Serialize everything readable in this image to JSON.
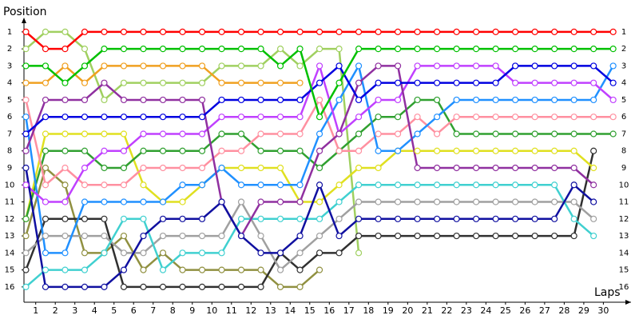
{
  "chart_data": {
    "type": "line",
    "x_label": "Laps",
    "y_label": "Position",
    "x": [
      0,
      1,
      2,
      3,
      4,
      5,
      6,
      7,
      8,
      9,
      10,
      11,
      12,
      13,
      14,
      15,
      16,
      17,
      18,
      19,
      20,
      21,
      22,
      23,
      24,
      25,
      26,
      27,
      28,
      29,
      30
    ],
    "xlim": [
      -0.1,
      30.3
    ],
    "xticks": [
      {
        "value": 0.5,
        "label": "1"
      },
      {
        "value": 1.5,
        "label": "2"
      },
      {
        "value": 2.5,
        "label": "3"
      },
      {
        "value": 3.5,
        "label": "4"
      },
      {
        "value": 4.5,
        "label": "5"
      },
      {
        "value": 5.5,
        "label": "6"
      },
      {
        "value": 6.5,
        "label": "7"
      },
      {
        "value": 7.5,
        "label": "8"
      },
      {
        "value": 8.5,
        "label": "9"
      },
      {
        "value": 9.5,
        "label": "10"
      },
      {
        "value": 10.5,
        "label": "11"
      },
      {
        "value": 11.5,
        "label": "12"
      },
      {
        "value": 12.5,
        "label": "13"
      },
      {
        "value": 13.5,
        "label": "14"
      },
      {
        "value": 14.5,
        "label": "15"
      },
      {
        "value": 15.5,
        "label": "16"
      },
      {
        "value": 16.5,
        "label": "17"
      },
      {
        "value": 17.5,
        "label": "18"
      },
      {
        "value": 18.5,
        "label": "19"
      },
      {
        "value": 19.5,
        "label": "20"
      },
      {
        "value": 20.5,
        "label": "21"
      },
      {
        "value": 21.5,
        "label": "22"
      },
      {
        "value": 22.5,
        "label": "23"
      },
      {
        "value": 23.5,
        "label": "24"
      },
      {
        "value": 24.5,
        "label": "25"
      },
      {
        "value": 25.5,
        "label": "26"
      },
      {
        "value": 26.5,
        "label": "27"
      },
      {
        "value": 27.5,
        "label": "28"
      },
      {
        "value": 28.5,
        "label": "29"
      },
      {
        "value": 29.5,
        "label": "30"
      }
    ],
    "ylim": [
      16.9,
      0.3
    ],
    "yticks": [
      1,
      2,
      3,
      4,
      5,
      6,
      7,
      8,
      9,
      10,
      11,
      12,
      13,
      14,
      15,
      16
    ],
    "series": [
      {
        "color": "#a0d060",
        "values": [
          2,
          1,
          1,
          2,
          5,
          4,
          4,
          4,
          4,
          4,
          3,
          3,
          3,
          2,
          3,
          2,
          2,
          14,
          null,
          null,
          null,
          null,
          null,
          null,
          null,
          null,
          null,
          null,
          null,
          null,
          null
        ]
      },
      {
        "color": "#909040",
        "values": [
          13,
          9,
          10,
          14,
          14,
          13,
          15,
          14,
          15,
          15,
          15,
          15,
          15,
          16,
          16,
          15,
          null,
          null,
          null,
          null,
          null,
          null,
          null,
          null,
          null,
          null,
          null,
          null,
          null,
          null,
          null
        ]
      },
      {
        "color": "#303030",
        "values": [
          15,
          12,
          12,
          12,
          12,
          16,
          16,
          16,
          16,
          16,
          16,
          16,
          16,
          14,
          15,
          14,
          14,
          13,
          13,
          13,
          13,
          13,
          13,
          13,
          13,
          13,
          13,
          13,
          13,
          8,
          null
        ]
      },
      {
        "color": "#a0a0a0",
        "values": [
          14,
          13,
          13,
          13,
          13,
          14,
          14,
          13,
          13,
          13,
          13,
          11,
          13,
          15,
          14,
          13,
          12,
          11,
          11,
          11,
          11,
          11,
          11,
          11,
          11,
          11,
          11,
          11,
          11,
          12,
          null
        ]
      },
      {
        "color": "#40d0d0",
        "values": [
          16,
          15,
          15,
          15,
          14,
          12,
          12,
          15,
          14,
          14,
          14,
          12,
          12,
          12,
          12,
          12,
          11,
          10,
          10,
          10,
          10,
          10,
          10,
          10,
          10,
          10,
          10,
          10,
          12,
          13,
          null
        ]
      },
      {
        "color": "#e0e020",
        "values": [
          12,
          7,
          7,
          7,
          7,
          7,
          10,
          11,
          11,
          10,
          9,
          9,
          9,
          9,
          11,
          11,
          10,
          9,
          9,
          8,
          8,
          8,
          8,
          8,
          8,
          8,
          8,
          8,
          8,
          9,
          null
        ]
      },
      {
        "color": "#30a030",
        "values": [
          12,
          8,
          8,
          8,
          9,
          9,
          8,
          8,
          8,
          8,
          7,
          7,
          8,
          8,
          8,
          9,
          8,
          7,
          6,
          6,
          5,
          5,
          7,
          7,
          7,
          7,
          7,
          7,
          7,
          7,
          7
        ]
      },
      {
        "color": "#ff90a0",
        "values": [
          5,
          10,
          9,
          10,
          10,
          10,
          9,
          9,
          9,
          9,
          8,
          8,
          7,
          7,
          7,
          5,
          8,
          8,
          7,
          7,
          6,
          7,
          6,
          6,
          6,
          6,
          6,
          6,
          6,
          6,
          6
        ]
      },
      {
        "color": "#2090ff",
        "values": [
          6,
          14,
          14,
          11,
          11,
          11,
          11,
          11,
          10,
          10,
          9,
          10,
          10,
          10,
          10,
          7,
          5,
          3,
          8,
          8,
          7,
          6,
          5,
          5,
          5,
          5,
          5,
          5,
          5,
          5,
          3
        ]
      },
      {
        "color": "#c040ff",
        "values": [
          10,
          11,
          11,
          9,
          8,
          8,
          7,
          7,
          7,
          7,
          6,
          6,
          6,
          6,
          6,
          3,
          7,
          6,
          5,
          5,
          3,
          3,
          3,
          3,
          3,
          4,
          4,
          4,
          4,
          4,
          5
        ]
      },
      {
        "color": "#9030a0",
        "values": [
          8,
          5,
          5,
          5,
          4,
          5,
          5,
          5,
          5,
          5,
          11,
          13,
          11,
          11,
          11,
          8,
          7,
          4,
          3,
          3,
          9,
          9,
          9,
          9,
          9,
          9,
          9,
          9,
          9,
          10,
          null
        ]
      },
      {
        "color": "#1010a0",
        "values": [
          9,
          16,
          16,
          16,
          16,
          15,
          13,
          12,
          12,
          12,
          11,
          13,
          14,
          14,
          13,
          10,
          13,
          12,
          12,
          12,
          12,
          12,
          12,
          12,
          12,
          12,
          12,
          12,
          10,
          11,
          null
        ]
      },
      {
        "color": "#0000e0",
        "values": [
          7,
          6,
          6,
          6,
          6,
          6,
          6,
          6,
          6,
          6,
          5,
          5,
          5,
          5,
          5,
          4,
          3,
          5,
          4,
          4,
          4,
          4,
          4,
          4,
          4,
          3,
          3,
          3,
          3,
          3,
          4
        ]
      },
      {
        "color": "#f0a020",
        "values": [
          4,
          4,
          3,
          4,
          3,
          3,
          3,
          3,
          3,
          3,
          4,
          4,
          4,
          4,
          4,
          null,
          null,
          null,
          null,
          null,
          null,
          null,
          null,
          null,
          null,
          null,
          null,
          null,
          null,
          null,
          null
        ]
      },
      {
        "color": "#00c000",
        "values": [
          3,
          3,
          4,
          3,
          2,
          2,
          2,
          2,
          2,
          2,
          2,
          2,
          2,
          3,
          2,
          6,
          4,
          2,
          2,
          2,
          2,
          2,
          2,
          2,
          2,
          2,
          2,
          2,
          2,
          2,
          2
        ]
      },
      {
        "color": "#ff0000",
        "values": [
          1,
          2,
          2,
          1,
          1,
          1,
          1,
          1,
          1,
          1,
          1,
          1,
          1,
          1,
          1,
          1,
          1,
          1,
          1,
          1,
          1,
          1,
          1,
          1,
          1,
          1,
          1,
          1,
          1,
          1,
          1
        ]
      }
    ]
  }
}
